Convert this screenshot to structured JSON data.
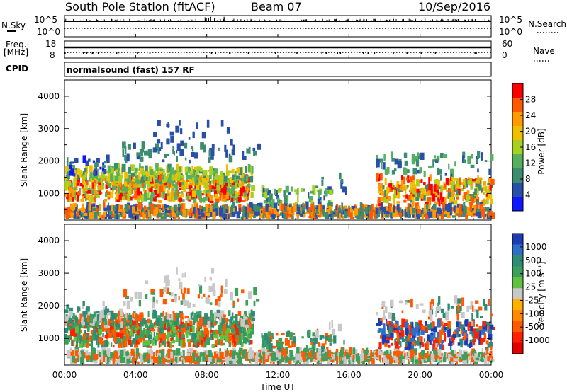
{
  "header": {
    "station": "South Pole Station (fitACF)",
    "beam": "Beam 07",
    "date": "10/Sep/2016"
  },
  "status_panels": {
    "nsky_label": "N.Sky",
    "nsky_ticks": [
      "10^5",
      "10^0"
    ],
    "nsearch_label": "N.Search",
    "nsearch_ticks": [
      "10^5",
      "10^0"
    ],
    "freq_label_1": "Freq.",
    "freq_label_2": "[MHz]",
    "freq_ticks": [
      "18",
      "8"
    ],
    "nave_label": "Nave",
    "nave_ticks": [
      "60",
      "0"
    ],
    "cpid_label": "CPID",
    "cpid_value": "normalsound (fast) 157 RF"
  },
  "chart_data": [
    {
      "type": "heatmap",
      "name": "power",
      "ylabel": "Slant Range [km]",
      "y_ticks": [
        "4000",
        "3000",
        "2000",
        "1000"
      ],
      "ylim": [
        180,
        4500
      ],
      "colorbar_label": "Power [dB]",
      "colorbar_ticks": [
        "28",
        "24",
        "20",
        "16",
        "12",
        "8",
        "4"
      ],
      "colorbar_colors": [
        "#ff0000",
        "#ff5a00",
        "#ff9a00",
        "#f0c000",
        "#a8d020",
        "#55b060",
        "#3c8c70",
        "#2850a8",
        "#1018ff"
      ],
      "clim": [
        0,
        32
      ]
    },
    {
      "type": "heatmap",
      "name": "velocity",
      "ylabel": "Slant Range [km]",
      "y_ticks": [
        "4000",
        "3000",
        "2000",
        "1000"
      ],
      "ylim": [
        180,
        4500
      ],
      "colorbar_label": "Velocity [m s⁻¹]",
      "colorbar_ticks": [
        "1000",
        "500",
        "100",
        "25",
        "-25",
        "-100",
        "-500",
        "-1000"
      ],
      "colorbar_colors": [
        "#1c3cb4",
        "#2c6ec8",
        "#2e8c74",
        "#3ca05c",
        "#60c040",
        "#c8c8c8",
        "#ffb000",
        "#ff8a00",
        "#ff5a00",
        "#ff2000",
        "#e00000"
      ]
    }
  ],
  "xaxis": {
    "ticks": [
      "00:00",
      "04:00",
      "08:00",
      "12:00",
      "16:00",
      "20:00",
      "00:00"
    ],
    "label": "Time UT"
  }
}
